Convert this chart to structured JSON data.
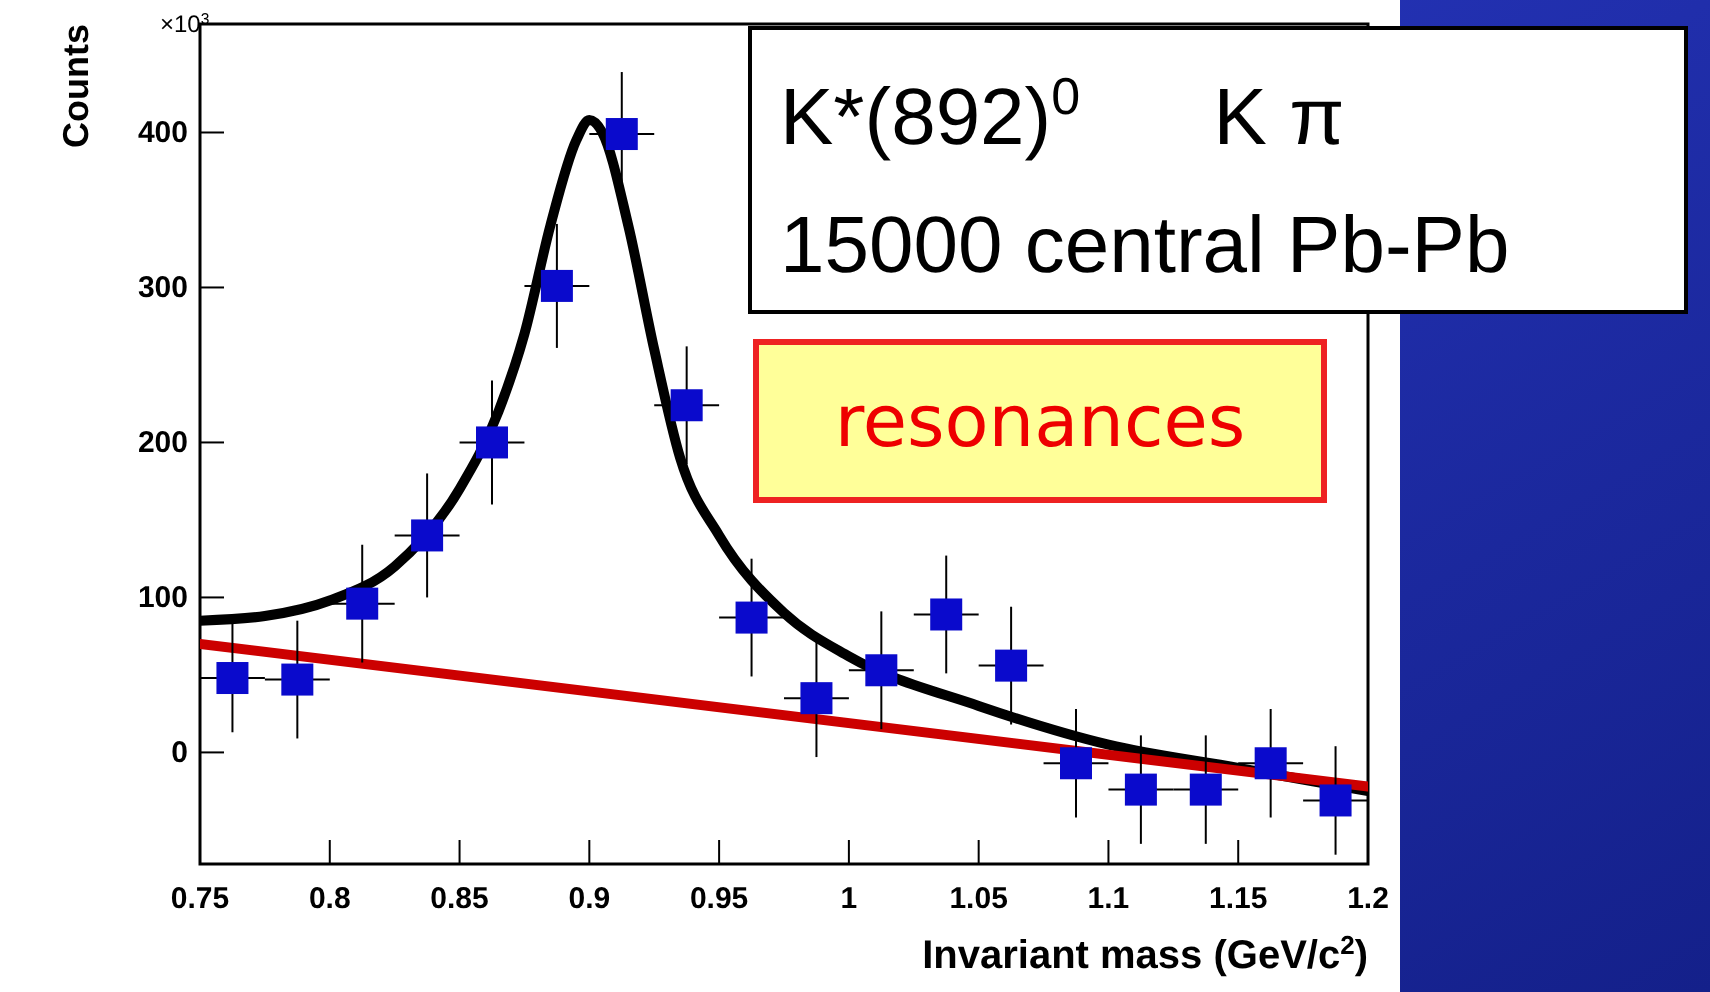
{
  "chart_data": {
    "type": "scatter",
    "xlabel": "Invariant mass (GeV/c$^{2}$)",
    "ylabel": "Counts",
    "xlim": [
      0.75,
      1.2
    ],
    "ylim": [
      -72,
      470
    ],
    "xticks": [
      0.75,
      0.8,
      0.85,
      0.9,
      0.95,
      1,
      1.05,
      1.1,
      1.15,
      1.2
    ],
    "yticks": [
      0,
      100,
      200,
      300,
      400
    ],
    "grid": false,
    "annotations": [
      "×10$^{3}$",
      "K*(892)$^{0}$      K π",
      "15000 central Pb-Pb",
      "resonances"
    ],
    "series": [
      {
        "marker": "square",
        "color": "#0a0acc",
        "x": [
          0.7625,
          0.7875,
          0.8125,
          0.8375,
          0.8625,
          0.8875,
          0.9125,
          0.9375,
          0.9625,
          0.9875,
          1.0125,
          1.0375,
          1.0625,
          1.0875,
          1.1125,
          1.1375,
          1.1625,
          1.1875
        ],
        "values": [
          48,
          47,
          96,
          140,
          200,
          301,
          399,
          224,
          87,
          35,
          53,
          89,
          56,
          -7,
          -24,
          -24,
          -7,
          -31
        ],
        "errors": [
          35,
          38,
          38,
          40,
          40,
          40,
          40,
          38,
          38,
          38,
          38,
          38,
          38,
          35,
          35,
          35,
          35,
          35
        ],
        "xerrors": [
          0.0125,
          0.0125,
          0.0125,
          0.0125,
          0.0125,
          0.0125,
          0.0125,
          0.0125,
          0.0125,
          0.0125,
          0.0125,
          0.0125,
          0.0125,
          0.0125,
          0.0125,
          0.0125,
          0.0125,
          0.0125
        ]
      },
      {
        "type": "line",
        "color": "#000000",
        "x": [
          0.75,
          0.775,
          0.8,
          0.825,
          0.85,
          0.865,
          0.875,
          0.885,
          0.895,
          0.9,
          0.905,
          0.915,
          0.925,
          0.935,
          0.95,
          0.975,
          1.0,
          1.05,
          1.1,
          1.15,
          1.2
        ],
        "values": [
          85,
          88,
          98,
          120,
          170,
          220,
          270,
          340,
          395,
          408,
          400,
          340,
          260,
          190,
          140,
          90,
          62,
          30,
          5,
          -10,
          -25
        ]
      },
      {
        "type": "line",
        "color": "#cc0000",
        "x": [
          0.75,
          1.2
        ],
        "values": [
          70,
          -22
        ]
      }
    ]
  }
}
